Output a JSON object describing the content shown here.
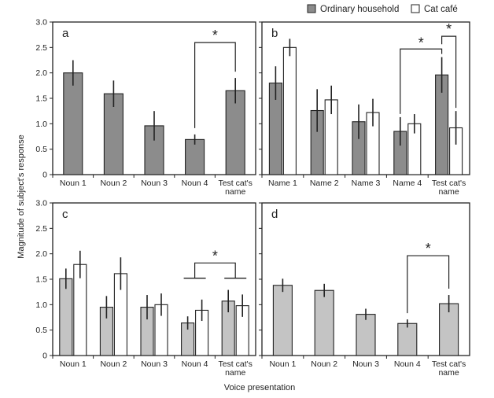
{
  "legend": {
    "items": [
      {
        "label": "Ordinary household",
        "color": "#8c8c8c"
      },
      {
        "label": "Cat café",
        "color": "#ffffff"
      }
    ]
  },
  "ylabel": "Magnitude of subject's response",
  "xlabel": "Voice presentation",
  "colors": {
    "ordinary_ab": "#8c8c8c",
    "ordinary_cd": "#c4c4c4",
    "cafe": "#ffffff",
    "stroke": "#222222"
  },
  "chart_data": [
    {
      "id": "a",
      "panel_label": "a",
      "type": "bar",
      "categories": [
        "Noun 1",
        "Noun 2",
        "Noun 3",
        "Noun 4",
        "Test cat's name"
      ],
      "yticks": [
        "0",
        "0.5",
        "1.0",
        "1.5",
        "2.0",
        "2.5",
        "3.0"
      ],
      "ylim": [
        0,
        3
      ],
      "series": [
        {
          "group": "Ordinary household",
          "values": [
            2.0,
            1.59,
            0.96,
            0.69,
            1.65
          ],
          "err": [
            0.25,
            0.26,
            0.29,
            0.1,
            0.25
          ]
        }
      ],
      "significance": [
        {
          "from": 3,
          "to": 4,
          "label": "*"
        }
      ]
    },
    {
      "id": "b",
      "panel_label": "b",
      "type": "bar",
      "categories": [
        "Name 1",
        "Name 2",
        "Name 3",
        "Name 4",
        "Test cat's name"
      ],
      "ylim": [
        0,
        3
      ],
      "series": [
        {
          "group": "Ordinary household",
          "values": [
            1.8,
            1.26,
            1.04,
            0.85,
            1.96
          ],
          "err": [
            0.33,
            0.42,
            0.34,
            0.28,
            0.35
          ]
        },
        {
          "group": "Cat café",
          "values": [
            2.5,
            1.47,
            1.22,
            1.0,
            0.92
          ],
          "err": [
            0.17,
            0.28,
            0.27,
            0.19,
            0.33
          ]
        }
      ],
      "significance": [
        {
          "label": "*"
        },
        {
          "label": "*"
        }
      ]
    },
    {
      "id": "c",
      "panel_label": "c",
      "type": "bar",
      "categories": [
        "Noun 1",
        "Noun 2",
        "Noun 3",
        "Noun 4",
        "Test cat's name"
      ],
      "yticks": [
        "0",
        "0.5",
        "1.0",
        "1.5",
        "2.0",
        "2.5",
        "3.0"
      ],
      "ylim": [
        0,
        3
      ],
      "series": [
        {
          "group": "Ordinary household",
          "values": [
            1.51,
            0.95,
            0.95,
            0.64,
            1.07
          ],
          "err": [
            0.2,
            0.22,
            0.24,
            0.13,
            0.22
          ]
        },
        {
          "group": "Cat café",
          "values": [
            1.79,
            1.61,
            1.0,
            0.89,
            0.98
          ],
          "err": [
            0.27,
            0.32,
            0.22,
            0.21,
            0.22
          ]
        }
      ],
      "significance": [
        {
          "label": "*"
        }
      ]
    },
    {
      "id": "d",
      "panel_label": "d",
      "type": "bar",
      "categories": [
        "Noun 1",
        "Noun 2",
        "Noun 3",
        "Noun 4",
        "Test cat's name"
      ],
      "ylim": [
        0,
        3
      ],
      "series": [
        {
          "group": "Ordinary household",
          "values": [
            1.38,
            1.28,
            0.81,
            0.63,
            1.02
          ],
          "err": [
            0.13,
            0.13,
            0.11,
            0.08,
            0.17
          ]
        }
      ],
      "significance": [
        {
          "from": 3,
          "to": 4,
          "label": "*"
        }
      ]
    }
  ]
}
